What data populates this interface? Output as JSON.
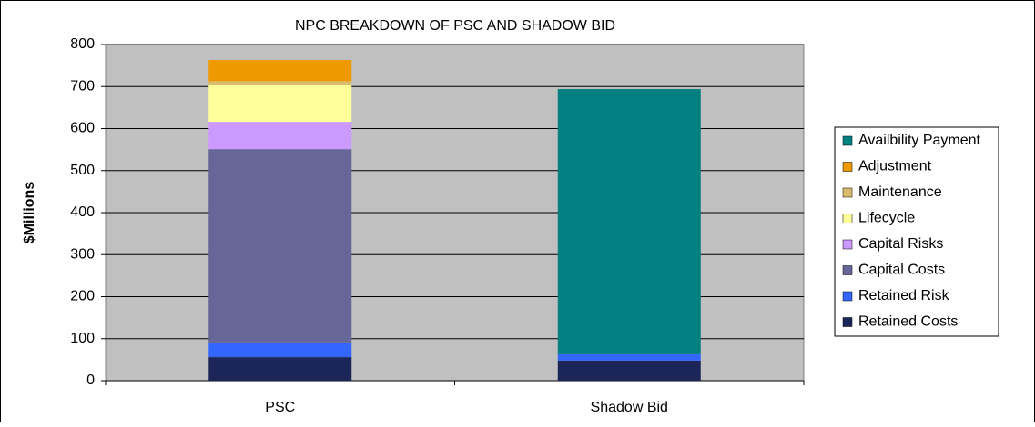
{
  "chart_data": {
    "type": "stacked_bar",
    "title": "NPC BREAKDOWN OF PSC AND SHADOW BID",
    "y_label": "$Millions",
    "categories": [
      "PSC",
      "Shadow Bid"
    ],
    "series": [
      {
        "name": "Retained Costs",
        "color": "#1c2558",
        "values": [
          56,
          48
        ]
      },
      {
        "name": "Retained Risk",
        "color": "#3366ff",
        "values": [
          35,
          15
        ]
      },
      {
        "name": "Capital Costs",
        "color": "#666699",
        "values": [
          460,
          0
        ]
      },
      {
        "name": "Capital Risks",
        "color": "#cc99ff",
        "values": [
          65,
          0
        ]
      },
      {
        "name": "Lifecycle",
        "color": "#ffff99",
        "values": [
          87,
          0
        ]
      },
      {
        "name": "Maintenance",
        "color": "#dcbc6c",
        "values": [
          10,
          0
        ]
      },
      {
        "name": "Adjustment",
        "color": "#ee9900",
        "values": [
          50,
          0
        ]
      },
      {
        "name": "Availbility Payment",
        "color": "#008080",
        "values": [
          0,
          631
        ]
      }
    ],
    "ylim": [
      0,
      800
    ],
    "yticks": [
      0,
      100,
      200,
      300,
      400,
      500,
      600,
      700,
      800
    ],
    "grid": true,
    "legend": "right"
  }
}
